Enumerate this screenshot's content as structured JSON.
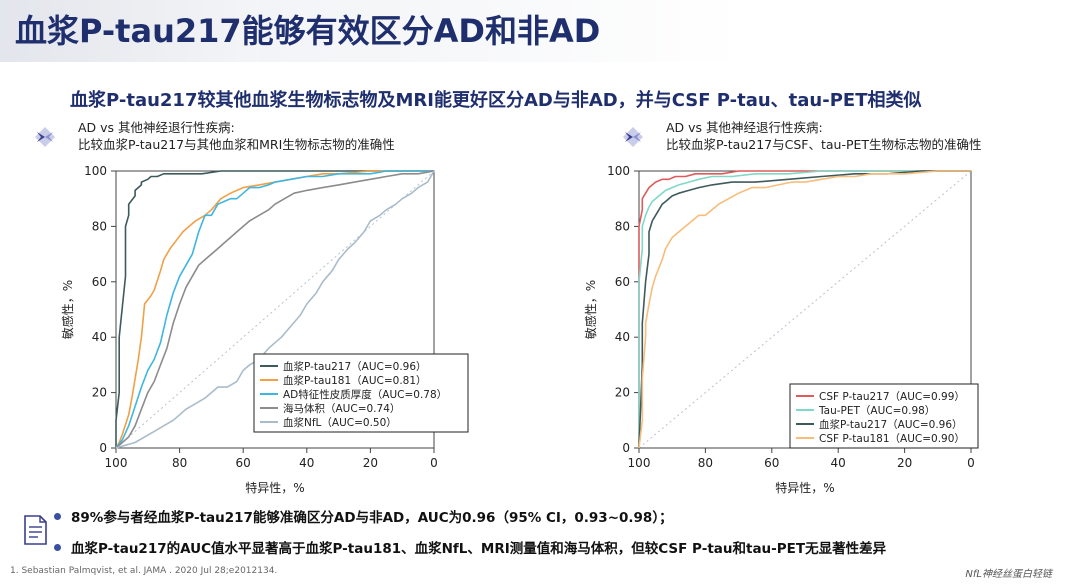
{
  "header": {
    "title": "血浆P-tau217能够有效区分AD和非AD",
    "subtitle": "血浆P-tau217较其他血浆生物标志物及MRI能更好区分AD与非AD，并与CSF P-tau、tau-PET相类似"
  },
  "colors": {
    "title": "#1f2f6e",
    "ptau217": "#3f5a5c",
    "ptau181": "#f0a046",
    "ad_cortical": "#3fb6e0",
    "hippocampus": "#8c8c8c",
    "nfl": "#a9bccb",
    "csf_ptau217": "#e05a5a",
    "tau_pet": "#7fd8c8",
    "csf_ptau181": "#f7bd7a"
  },
  "chart_data": [
    {
      "type": "line",
      "heading_line1": "AD vs 其他神经退行性疾病:",
      "heading_line2": "比较血浆P-tau217与其他血浆和MRI生物标志物的准确性",
      "xlabel": "特异性，%",
      "ylabel": "敏感性，%",
      "xlim": [
        100,
        0
      ],
      "ylim": [
        0,
        100
      ],
      "x_ticks": [
        "100",
        "80",
        "60",
        "40",
        "20",
        "0"
      ],
      "y_ticks": [
        "0",
        "20",
        "40",
        "60",
        "80",
        "100"
      ],
      "legend_position": "bottom-right",
      "series": [
        {
          "name": "血浆P-tau217（AUC=0.96）",
          "color": "#3f5a5c",
          "x": [
            100,
            100,
            99,
            99,
            97,
            97,
            96,
            96,
            94,
            94,
            92,
            92,
            90,
            89,
            87,
            85,
            82,
            78,
            73,
            67,
            60,
            50,
            40,
            30,
            20,
            10,
            0
          ],
          "y": [
            0,
            10,
            20,
            40,
            62,
            80,
            84,
            88,
            91,
            93,
            95,
            96,
            97,
            98,
            98,
            99,
            99,
            99,
            99,
            100,
            100,
            100,
            100,
            100,
            100,
            100,
            100
          ]
        },
        {
          "name": "血浆P-tau181（AUC=0.81）",
          "color": "#f0a046",
          "x": [
            100,
            99,
            98,
            96,
            95,
            94,
            93,
            92,
            91,
            89,
            88,
            86,
            85,
            83,
            81,
            79,
            77,
            75,
            72,
            70,
            67,
            64,
            60,
            55,
            50,
            45,
            40,
            35,
            30,
            20,
            10,
            0
          ],
          "y": [
            0,
            2,
            5,
            12,
            18,
            25,
            32,
            40,
            52,
            55,
            57,
            64,
            68,
            72,
            75,
            78,
            80,
            82,
            84,
            86,
            90,
            92,
            94,
            95,
            96,
            97,
            98,
            99,
            99,
            100,
            100,
            100
          ]
        },
        {
          "name": "AD特征性皮质厚度（AUC=0.78）",
          "color": "#3fb6e0",
          "x": [
            100,
            98,
            96,
            94,
            92,
            90,
            88,
            86,
            84,
            82,
            80,
            78,
            76,
            74,
            72,
            70,
            68,
            66,
            64,
            62,
            60,
            58,
            55,
            52,
            50,
            45,
            40,
            35,
            30,
            25,
            20,
            15,
            10,
            5,
            0
          ],
          "y": [
            0,
            3,
            8,
            15,
            22,
            28,
            32,
            38,
            48,
            56,
            62,
            66,
            70,
            78,
            84,
            84,
            88,
            89,
            90,
            90,
            92,
            94,
            94,
            95,
            96,
            97,
            98,
            98,
            99,
            99,
            99,
            100,
            100,
            100,
            100
          ]
        },
        {
          "name": "海马体积（AUC=0.74）",
          "color": "#8c8c8c",
          "x": [
            100,
            98,
            96,
            94,
            92,
            90,
            88,
            86,
            84,
            82,
            80,
            78,
            76,
            74,
            72,
            70,
            68,
            66,
            64,
            62,
            60,
            58,
            55,
            52,
            50,
            47,
            44,
            40,
            35,
            30,
            25,
            20,
            15,
            10,
            5,
            0
          ],
          "y": [
            0,
            2,
            4,
            8,
            14,
            20,
            24,
            30,
            36,
            45,
            52,
            58,
            62,
            66,
            68,
            70,
            72,
            74,
            76,
            78,
            80,
            82,
            84,
            86,
            88,
            90,
            92,
            93,
            94,
            95,
            96,
            97,
            98,
            99,
            99,
            100
          ]
        },
        {
          "name": "血浆NfL（AUC=0.50）",
          "color": "#a9bccb",
          "x": [
            100,
            97,
            94,
            91,
            88,
            85,
            82,
            80,
            78,
            75,
            72,
            70,
            68,
            65,
            62,
            60,
            58,
            55,
            52,
            50,
            48,
            45,
            42,
            40,
            37,
            35,
            32,
            30,
            27,
            25,
            22,
            20,
            17,
            15,
            12,
            10,
            7,
            5,
            2,
            0
          ],
          "y": [
            0,
            1,
            2,
            4,
            6,
            8,
            10,
            12,
            14,
            16,
            18,
            20,
            22,
            22,
            24,
            28,
            30,
            32,
            36,
            38,
            40,
            44,
            48,
            52,
            56,
            60,
            64,
            68,
            72,
            74,
            78,
            82,
            84,
            86,
            88,
            90,
            92,
            94,
            96,
            100
          ]
        }
      ]
    },
    {
      "type": "line",
      "heading_line1": "AD vs 其他神经退行性疾病:",
      "heading_line2": "比较血浆P-tau217与CSF、tau-PET生物标志物的准确性",
      "xlabel": "特异性，%",
      "ylabel": "敏感性，%",
      "xlim": [
        100,
        0
      ],
      "ylim": [
        0,
        100
      ],
      "x_ticks": [
        "100",
        "80",
        "60",
        "40",
        "20",
        "0"
      ],
      "y_ticks": [
        "0",
        "20",
        "40",
        "60",
        "80",
        "100"
      ],
      "legend_position": "bottom-right",
      "series": [
        {
          "name": "CSF P-tau217（AUC=0.99）",
          "color": "#e05a5a",
          "x": [
            100,
            100,
            99,
            99,
            98,
            97,
            96,
            95,
            93,
            91,
            89,
            86,
            83,
            80,
            75,
            70,
            60,
            50,
            40,
            30,
            20,
            10,
            0
          ],
          "y": [
            0,
            80,
            86,
            90,
            92,
            94,
            95,
            96,
            97,
            97,
            98,
            98,
            99,
            99,
            99,
            100,
            100,
            100,
            100,
            100,
            100,
            100,
            100
          ]
        },
        {
          "name": "Tau-PET（AUC=0.98）",
          "color": "#7fd8c8",
          "x": [
            100,
            100,
            99,
            99,
            98,
            97,
            96,
            94,
            92,
            90,
            88,
            85,
            82,
            78,
            72,
            65,
            55,
            45,
            35,
            25,
            15,
            5,
            0
          ],
          "y": [
            0,
            60,
            72,
            80,
            84,
            87,
            89,
            91,
            93,
            94,
            95,
            96,
            97,
            98,
            98,
            99,
            99,
            100,
            100,
            100,
            100,
            100,
            100
          ]
        },
        {
          "name": "血浆P-tau217（AUC=0.96）",
          "color": "#3f5a5c",
          "x": [
            100,
            99,
            99,
            98,
            97,
            97,
            96,
            95,
            94,
            93,
            92,
            90,
            88,
            85,
            82,
            78,
            72,
            65,
            55,
            45,
            35,
            25,
            15,
            5,
            0
          ],
          "y": [
            0,
            30,
            45,
            60,
            70,
            78,
            82,
            84,
            86,
            88,
            89,
            91,
            92,
            93,
            94,
            95,
            96,
            96,
            97,
            98,
            99,
            99,
            100,
            100,
            100
          ]
        },
        {
          "name": "CSF P-tau181（AUC=0.90）",
          "color": "#f7bd7a",
          "x": [
            100,
            99,
            99,
            98,
            98,
            97,
            96,
            95,
            94,
            93,
            92,
            91,
            90,
            88,
            86,
            84,
            82,
            80,
            78,
            76,
            73,
            70,
            66,
            62,
            58,
            54,
            50,
            45,
            40,
            35,
            30,
            20,
            10,
            0
          ],
          "y": [
            0,
            10,
            25,
            40,
            45,
            52,
            58,
            62,
            65,
            68,
            72,
            74,
            76,
            78,
            80,
            82,
            84,
            84,
            86,
            88,
            90,
            92,
            94,
            94,
            95,
            96,
            96,
            97,
            98,
            98,
            99,
            99,
            100,
            100
          ]
        }
      ]
    }
  ],
  "notes": {
    "line1": "89%参与者经血浆P-tau217能够准确区分AD与非AD，AUC为0.96（95% CI，0.93~0.98）；",
    "line2": "血浆P-tau217的AUC值水平显著高于血浆P-tau181、血浆NfL、MRI测量值和海马体积，但较CSF P-tau和tau-PET无显著性差异"
  },
  "footer": {
    "reference": "1.    Sebastian Palmqvist,  et al. JAMA . 2020 Jul 28;e2012134.",
    "brand": "NfL神经丝蛋白轻链"
  },
  "icons": {
    "chart_logo": "diamond-arrow-icon",
    "notes_icon": "document-list-icon"
  }
}
